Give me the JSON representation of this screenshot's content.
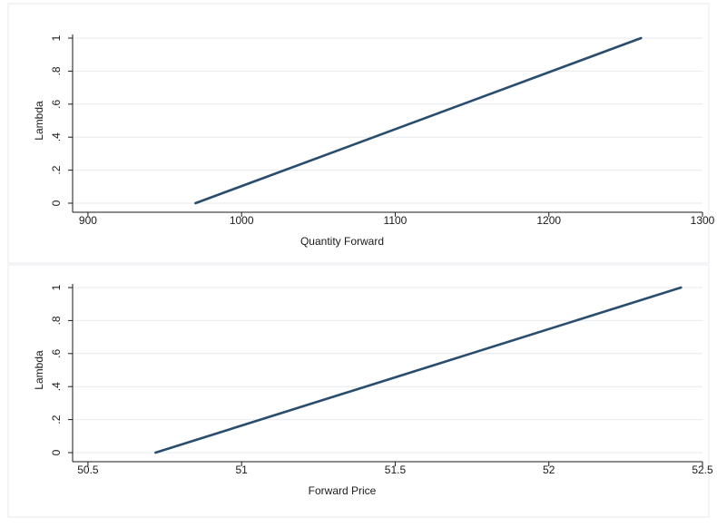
{
  "chart_data": [
    {
      "type": "line",
      "title": "",
      "xlabel": "Quantity Forward",
      "ylabel": "Lambda",
      "xlim": [
        890,
        1300
      ],
      "ylim": [
        0,
        1
      ],
      "xticks": [
        900,
        1000,
        1100,
        1200,
        1300
      ],
      "xtick_labels": [
        "900",
        "1000",
        "1100",
        "1200",
        "1300"
      ],
      "yticks": [
        0,
        0.2,
        0.4,
        0.6,
        0.8,
        1
      ],
      "ytick_labels": [
        "0",
        ".2",
        ".4",
        ".6",
        ".8",
        "1"
      ],
      "grid": true,
      "series": [
        {
          "color": "#2a4d6e",
          "x": [
            970,
            1260
          ],
          "y": [
            0,
            1
          ]
        }
      ]
    },
    {
      "type": "line",
      "title": "",
      "xlabel": "Forward Price",
      "ylabel": "Lambda",
      "xlim": [
        50.45,
        52.5
      ],
      "ylim": [
        0,
        1
      ],
      "xticks": [
        50.5,
        51,
        51.5,
        52,
        52.5
      ],
      "xtick_labels": [
        "50.5",
        "51",
        "51.5",
        "52",
        "52.5"
      ],
      "yticks": [
        0,
        0.2,
        0.4,
        0.6,
        0.8,
        1
      ],
      "ytick_labels": [
        "0",
        ".2",
        ".4",
        ".6",
        ".8",
        "1"
      ],
      "grid": true,
      "series": [
        {
          "color": "#2a4d6e",
          "x": [
            50.72,
            52.43
          ],
          "y": [
            0,
            1
          ]
        }
      ]
    }
  ]
}
